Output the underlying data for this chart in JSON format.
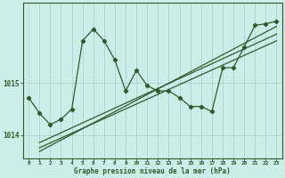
{
  "bg_color": "#cceee8",
  "grid_color": "#aacccc",
  "line_color": "#2d5a2d",
  "text_color": "#2d5a2d",
  "xlabel": "Graphe pression niveau de la mer (hPa)",
  "xlim": [
    -0.5,
    23.5
  ],
  "ylim": [
    1013.55,
    1016.55
  ],
  "yticks": [
    1014,
    1015
  ],
  "xticks": [
    0,
    1,
    2,
    3,
    4,
    5,
    6,
    7,
    8,
    9,
    10,
    11,
    12,
    13,
    14,
    15,
    16,
    17,
    18,
    19,
    20,
    21,
    22,
    23
  ],
  "series1": [
    1014.72,
    1014.42,
    1014.2,
    1014.3,
    1014.5,
    1015.82,
    1016.05,
    1015.82,
    1015.45,
    1014.85,
    1015.25,
    1014.95,
    1014.85,
    1014.85,
    1014.72,
    1014.55,
    1014.55,
    1014.45,
    1015.3,
    1015.3,
    1015.7,
    1016.12,
    1016.15,
    1016.2
  ],
  "trend1_x": [
    1,
    23
  ],
  "trend1_y": [
    1013.85,
    1015.95
  ],
  "trend2_x": [
    1,
    23
  ],
  "trend2_y": [
    1013.75,
    1015.82
  ],
  "trend3_x": [
    1,
    23
  ],
  "trend3_y": [
    1013.68,
    1016.1
  ]
}
